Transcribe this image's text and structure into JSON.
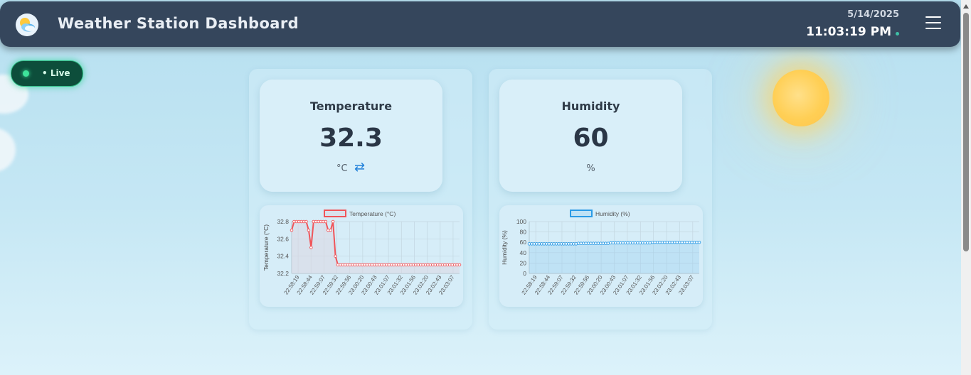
{
  "header": {
    "title": "Weather Station Dashboard",
    "date": "5/14/2025",
    "time": "11:03:19 PM",
    "logo_icon": "weather-cloud-sun-icon",
    "menu_icon": "hamburger-menu-icon"
  },
  "live_badge": {
    "label": "• Live",
    "color": "#3ee39a"
  },
  "temperature": {
    "title": "Temperature",
    "value": "32.3",
    "unit": "°C",
    "swap_glyph": "⇄",
    "swap_icon": "swap-unit-icon"
  },
  "humidity": {
    "title": "Humidity",
    "value": "60",
    "unit": "%"
  },
  "chart_data": [
    {
      "type": "line",
      "title": "",
      "legend": "Temperature (°C)",
      "ylabel": "Temperature (°C)",
      "xlabel": "",
      "ylim": [
        32.2,
        32.8
      ],
      "yticks": [
        "32.8",
        "32.6",
        "32.4",
        "32.2"
      ],
      "xtick_labels": [
        "22:58:19",
        "22:58:44",
        "22:59:07",
        "22:59:32",
        "22:59:56",
        "23:00:20",
        "23:00:43",
        "23:01:07",
        "23:01:32",
        "23:01:56",
        "23:02:20",
        "23:02:43",
        "23:03:07"
      ],
      "color": "#f0555a",
      "fill": "rgba(220,215,225,0.55)",
      "values": [
        32.7,
        32.8,
        32.8,
        32.8,
        32.8,
        32.8,
        32.8,
        32.7,
        32.5,
        32.8,
        32.8,
        32.8,
        32.8,
        32.8,
        32.8,
        32.7,
        32.7,
        32.8,
        32.4,
        32.3,
        32.3,
        32.3,
        32.3,
        32.3,
        32.3,
        32.3,
        32.3,
        32.3,
        32.3,
        32.3,
        32.3,
        32.3,
        32.3,
        32.3,
        32.3,
        32.3,
        32.3,
        32.3,
        32.3,
        32.3,
        32.3,
        32.3,
        32.3,
        32.3,
        32.3,
        32.3,
        32.3,
        32.3,
        32.3,
        32.3,
        32.3,
        32.3,
        32.3,
        32.3,
        32.3,
        32.3,
        32.3,
        32.3,
        32.3,
        32.3,
        32.3,
        32.3,
        32.3,
        32.3,
        32.3,
        32.3,
        32.3,
        32.3,
        32.3,
        32.3
      ]
    },
    {
      "type": "line",
      "title": "",
      "legend": "Humidity (%)",
      "ylabel": "Humidity (%)",
      "xlabel": "",
      "ylim": [
        0,
        100
      ],
      "yticks": [
        "100",
        "80",
        "60",
        "40",
        "20",
        "0"
      ],
      "xtick_labels": [
        "22:58:19",
        "22:58:44",
        "22:59:07",
        "22:59:32",
        "22:59:56",
        "23:00:20",
        "23:00:43",
        "23:01:07",
        "23:01:32",
        "23:01:56",
        "23:02:20",
        "23:02:43",
        "23:03:07"
      ],
      "color": "#2b9be6",
      "fill": "rgba(150,205,240,0.35)",
      "values": [
        57,
        57,
        57,
        57,
        57,
        57,
        57,
        57,
        57,
        57,
        57,
        57,
        57,
        57,
        57,
        57,
        57,
        57,
        57,
        57,
        58,
        58,
        58,
        58,
        58,
        58,
        58,
        58,
        58,
        58,
        58,
        58,
        58,
        59,
        59,
        59,
        59,
        59,
        59,
        59,
        59,
        59,
        59,
        59,
        59,
        59,
        59,
        59,
        59,
        59,
        60,
        60,
        60,
        60,
        60,
        60,
        60,
        60,
        60,
        60,
        60,
        60,
        60,
        60,
        60,
        60,
        60,
        60,
        60,
        60
      ]
    }
  ]
}
